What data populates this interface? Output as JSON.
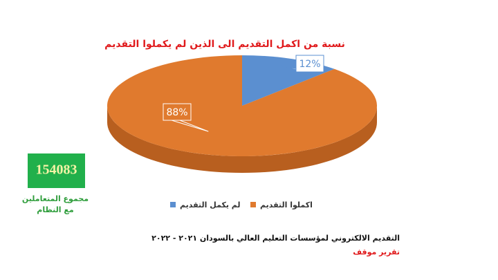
{
  "chart_data": {
    "type": "pie",
    "title": "نسبة من اكمل التقديم الى الذين لم يكملوا التقديم",
    "categories": [
      "لم يكمل التقديم",
      "اكملوا التقديم"
    ],
    "values": [
      12,
      88
    ],
    "value_labels": [
      "12%",
      "88%"
    ],
    "colors": [
      "#5b8fd0",
      "#e07a2e"
    ]
  },
  "stat": {
    "value": 154083,
    "label": [
      "مجموع المتعاملين",
      "مع النظام"
    ]
  },
  "footer": {
    "line1": "التقديم الالكتروني لمؤسسات التعليم العالي بالسودان ٢٠٢١ - ٢٠٢٢",
    "line2": "تقرير موقف"
  }
}
